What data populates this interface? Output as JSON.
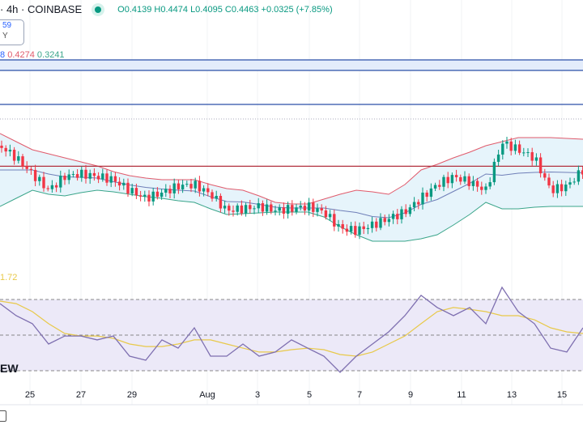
{
  "header": {
    "symbol_suffix": "· 4h · COINBASE",
    "open": "O0.4139",
    "high": "H0.4474",
    "low": "L0.4095",
    "close": "C0.4463",
    "change": "+0.0325 (+7.85%)",
    "status_color": "#089981"
  },
  "price_box": {
    "value": "59",
    "sub": "Y"
  },
  "bb_legend": {
    "middle_partial": "8",
    "upper": "0.4274",
    "lower": "0.3241"
  },
  "rsi_legend": {
    "value_partial": "1.72"
  },
  "overlay_text": "EW",
  "colors": {
    "up": "#089981",
    "down": "#f23645",
    "upper_band": "#e05a6b",
    "lower_band": "#3aa58a",
    "basis": "#6f7fb8",
    "band_fill": "#e6f4fb",
    "rsi": "#7e6fb0",
    "rsi_ma": "#e8c94a",
    "rsi_fill": "#ece9f8",
    "hline_red": "#b2313f",
    "hline_blue": "#2a4fa8"
  },
  "chart_data": {
    "type": "line",
    "title": "4h · COINBASE",
    "x_labels": [
      "25",
      "27",
      "29",
      "Aug",
      "3",
      "5",
      "7",
      "9",
      "11",
      "13",
      "15"
    ],
    "ylim": [
      0.3,
      0.5
    ],
    "horizontal_levels": [
      0.4274
    ],
    "series": [
      {
        "name": "close",
        "values": [
          0.4556,
          0.4389,
          0.4167,
          0.3944,
          0.4133,
          0.4167,
          0.4133,
          0.4089,
          0.3944,
          0.3833,
          0.3911,
          0.4,
          0.4022,
          0.3889,
          0.3667,
          0.3689,
          0.3722,
          0.3667,
          0.3689,
          0.3722,
          0.3644,
          0.3422,
          0.3389,
          0.3467,
          0.3556,
          0.3644,
          0.3833,
          0.4022,
          0.4133,
          0.4056,
          0.3944,
          0.46,
          0.45,
          0.4389,
          0.3944,
          0.4,
          0.4222
        ]
      },
      {
        "name": "bb_upper",
        "values": [
          0.4722,
          0.4611,
          0.45,
          0.4444,
          0.4389,
          0.4333,
          0.4278,
          0.42,
          0.4144,
          0.4111,
          0.4089,
          0.4089,
          0.4089,
          0.4022,
          0.3967,
          0.3944,
          0.3867,
          0.3778,
          0.3756,
          0.3756,
          0.3822,
          0.3889,
          0.3944,
          0.3922,
          0.3889,
          0.4022,
          0.4222,
          0.43,
          0.4389,
          0.4467,
          0.4556,
          0.4611,
          0.4667,
          0.4667,
          0.4667,
          0.4656,
          0.4644
        ]
      },
      {
        "name": "bb_lower",
        "values": [
          0.3722,
          0.3833,
          0.3944,
          0.3889,
          0.3867,
          0.3911,
          0.3944,
          0.3922,
          0.3889,
          0.3856,
          0.3833,
          0.38,
          0.3778,
          0.3689,
          0.3611,
          0.3622,
          0.3633,
          0.3644,
          0.3644,
          0.3644,
          0.3578,
          0.3444,
          0.3333,
          0.3244,
          0.3244,
          0.3244,
          0.3278,
          0.3333,
          0.3467,
          0.3611,
          0.3778,
          0.3689,
          0.3689,
          0.3711,
          0.3722,
          0.3722,
          0.3722
        ]
      },
      {
        "name": "rsi",
        "values": [
          67.7,
          60.9,
          56.4,
          45,
          49.5,
          49.5,
          47.3,
          49.5,
          38.2,
          35.9,
          47.3,
          42.7,
          54.1,
          38.2,
          38.2,
          45,
          38.2,
          40.5,
          47.3,
          42.7,
          38.2,
          29.1,
          38.2,
          45,
          51.8,
          60.9,
          72.3,
          65.5,
          60.9,
          65.5,
          56.4,
          76.8,
          63.2,
          56.4,
          42.7,
          40.5,
          54.1
        ]
      },
      {
        "name": "rsi_ma",
        "values": [
          69.1,
          67.7,
          63.2,
          56.4,
          50.9,
          49.5,
          49.5,
          48.2,
          45,
          43.6,
          43.6,
          45,
          47.3,
          47.3,
          45,
          42.7,
          40.5,
          40.5,
          41.8,
          42.7,
          41.8,
          39.1,
          38.2,
          40.5,
          45,
          49.5,
          56.4,
          63.2,
          65.5,
          64.5,
          63.2,
          60.9,
          60.9,
          58.6,
          54.1,
          51.8,
          50.9
        ]
      }
    ],
    "rsi_levels": [
      70,
      50,
      30
    ]
  }
}
